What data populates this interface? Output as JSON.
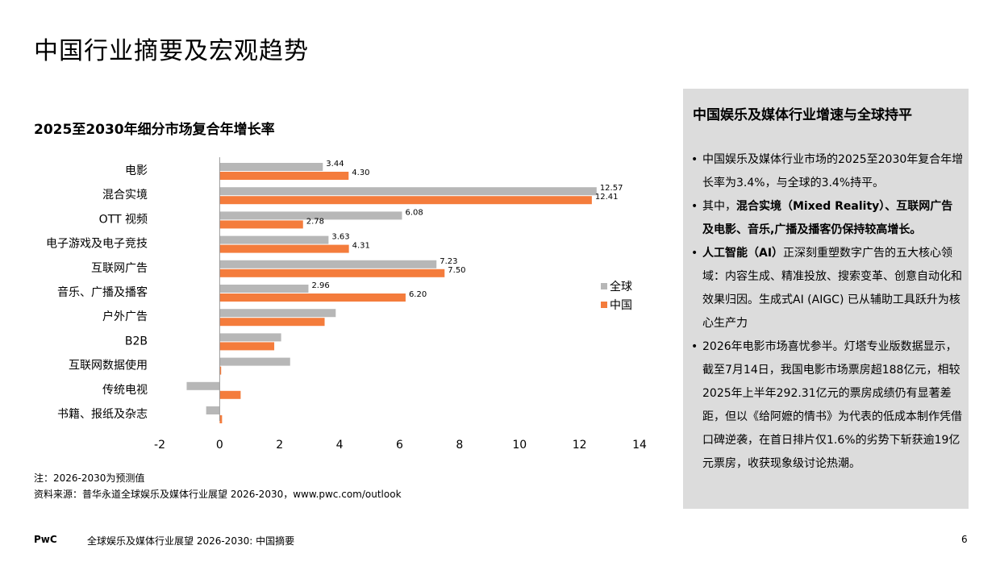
{
  "page_title": "中国行业摘要及宏观趋势",
  "chart_title": "2025至2030年细分市场复合年增长率",
  "chart_data": {
    "type": "bar",
    "orientation": "horizontal",
    "categories": [
      "电影",
      "混合实境",
      "OTT 视频",
      "电子游戏及电子竞技",
      "互联网广告",
      "音乐、广播及播客",
      "户外广告",
      "B2B",
      "互联网数据使用",
      "传统电视",
      "书籍、报纸及杂志"
    ],
    "series": [
      {
        "name": "全球",
        "color": "#b7b7b7",
        "values": [
          3.44,
          12.57,
          6.08,
          3.63,
          7.23,
          2.96,
          3.87,
          2.05,
          2.35,
          -1.1,
          -0.45
        ]
      },
      {
        "name": "中国",
        "color": "#f47c3c",
        "values": [
          4.3,
          12.41,
          2.78,
          4.31,
          7.5,
          6.2,
          3.5,
          1.82,
          0.05,
          0.7,
          0.08
        ]
      }
    ],
    "data_labels": [
      [
        "3.44",
        "12.57",
        "6.08",
        "3.63",
        "7.23",
        "2.96",
        "",
        "",
        "",
        "",
        ""
      ],
      [
        "4.30",
        "12.41",
        "2.78",
        "4.31",
        "7.50",
        "6.20",
        "",
        "",
        "",
        "",
        ""
      ]
    ],
    "xlim": [
      -2,
      14
    ],
    "xticks": [
      "-2",
      "0",
      "2",
      "4",
      "6",
      "8",
      "10",
      "12",
      "14"
    ],
    "legend_position": "right",
    "grid": false
  },
  "notes": {
    "note": "注：2026-2030为预测值",
    "source": "资料来源：普华永道全球娱乐及媒体行业展望 2026-2030，www.pwc.com/outlook"
  },
  "panel": {
    "title": "中国娱乐及媒体行业增速与全球持平",
    "bullet_symbol": "•",
    "bullets": [
      {
        "text": "中国娱乐及媒体行业市场的2025至2030年复合年增长率为3.4%，与全球的3.4%持平。"
      },
      {
        "pre": "其中，",
        "bold": "混合实境（Mixed Reality）、互联网广告及电影、音乐,广播及播客仍保持较高增长。",
        "post": ""
      },
      {
        "pre": "",
        "bold": "人工智能（AI）",
        "post": "正深刻重塑数字广告的五大核心领域：内容生成、精准投放、搜索变革、创意自动化和效果归因。生成式AI (AIGC) 已从辅助工具跃升为核心生产力"
      },
      {
        "text": "2026年电影市场喜忧参半。灯塔专业版数据显示，截至7月14日，我国电影市场票房超188亿元，相较2025年上半年292.31亿元的票房成绩仍有显著差距，但以《给阿嬷的情书》为代表的低成本制作凭借口碑逆袭，在首日排片仅1.6%的劣势下斩获逾19亿元票房，收获现象级讨论热潮。"
      }
    ]
  },
  "footer": {
    "brand": "PwC",
    "text": "全球娱乐及媒体行业展望 2026-2030: 中国摘要",
    "page": "6"
  }
}
